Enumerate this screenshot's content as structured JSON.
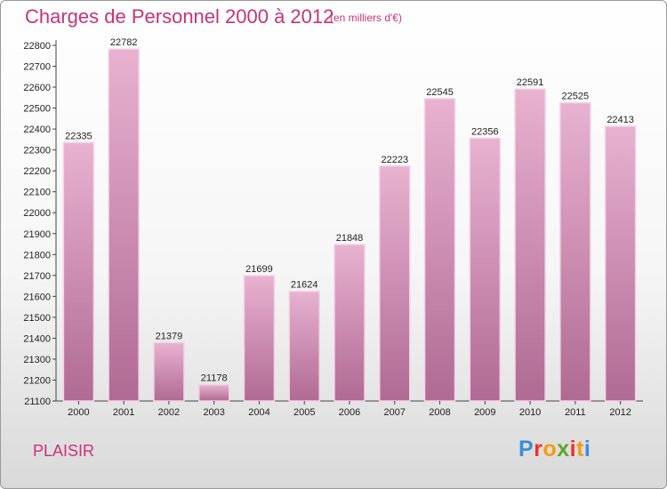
{
  "header": {
    "title": "Charges de Personnel 2000 à 2012",
    "subtitle": "(en milliers d'€)"
  },
  "footer": {
    "city": "PLAISIR",
    "logo": "Proxiti",
    "logo_colors": [
      "#3b8fd4",
      "#e8322b",
      "#f39c12",
      "#5aa630",
      "#e8322b",
      "#f39c12",
      "#3b8fd4"
    ]
  },
  "colors": {
    "bar": "#d98fb7",
    "bar_dark": "#b06a93",
    "bar_light": "#e8b2d0",
    "title": "#c8327a"
  },
  "chart_data": {
    "type": "bar",
    "categories": [
      "2000",
      "2001",
      "2002",
      "2003",
      "2004",
      "2005",
      "2006",
      "2007",
      "2008",
      "2009",
      "2010",
      "2011",
      "2012"
    ],
    "values": [
      22335,
      22782,
      21379,
      21178,
      21699,
      21624,
      21848,
      22223,
      22545,
      22356,
      22591,
      22525,
      22413
    ],
    "ylim": [
      21100,
      22800
    ],
    "yticks": [
      21100,
      21200,
      21300,
      21400,
      21500,
      21600,
      21700,
      21800,
      21900,
      22000,
      22100,
      22200,
      22300,
      22400,
      22500,
      22600,
      22700,
      22800
    ],
    "grid": false,
    "data_labels": true
  }
}
